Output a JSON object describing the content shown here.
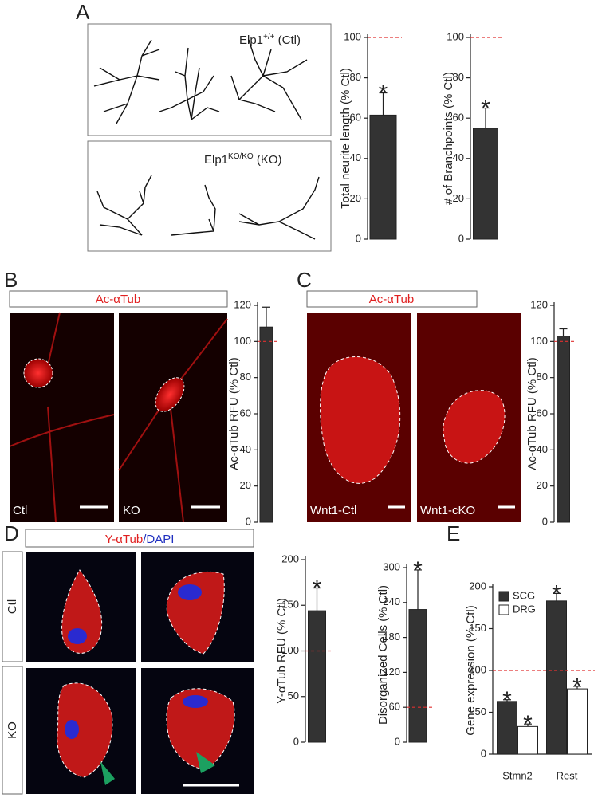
{
  "panel_letters": [
    "A",
    "B",
    "C",
    "D",
    "E"
  ],
  "panel_a": {
    "ctl": {
      "gene": "Elp1",
      "genotype": "+/+",
      "group": "(Ctl)"
    },
    "ko": {
      "gene": "Elp1",
      "genotype": "KO/KO",
      "group": "(KO)"
    }
  },
  "panel_b": {
    "header": "Ac-αTub",
    "images": [
      "Ctl",
      "KO"
    ]
  },
  "panel_c": {
    "header": "Ac-αTub",
    "images": [
      "Wnt1-Ctl",
      "Wnt1-cKO"
    ]
  },
  "panel_d": {
    "header": [
      "Y-αTub",
      "/DAPI"
    ],
    "rows": [
      "Ctl",
      "KO"
    ]
  },
  "chart_data": [
    {
      "type": "bar",
      "ylabel": "Total neurite length (% Ctl)",
      "categories": [
        null
      ],
      "series": [
        {
          "color": "#333333",
          "values": [
            61.5
          ],
          "errors": [
            11
          ],
          "labels": [
            "*"
          ]
        }
      ],
      "ylim": [
        0,
        100
      ],
      "yticks": [
        0,
        20,
        40,
        60,
        80,
        100
      ],
      "hline": {
        "value": 100,
        "color": "#e03030"
      }
    },
    {
      "type": "bar",
      "ylabel": "# of Branchpoints (% Ctl)",
      "categories": [
        null
      ],
      "series": [
        {
          "color": "#333333",
          "values": [
            55
          ],
          "errors": [
            10
          ],
          "labels": [
            "*"
          ]
        }
      ],
      "ylim": [
        0,
        100
      ],
      "yticks": [
        0,
        20,
        40,
        60,
        80,
        100
      ],
      "hline": {
        "value": 100,
        "color": "#e03030"
      }
    },
    {
      "type": "bar",
      "ylabel": "Ac-αTub RFU (% Ctl)",
      "categories": [
        null
      ],
      "series": [
        {
          "color": "#333333",
          "values": [
            108
          ],
          "errors": [
            11
          ]
        }
      ],
      "ylim": [
        0,
        120
      ],
      "yticks": [
        0,
        20,
        40,
        60,
        80,
        100,
        120
      ],
      "hline": {
        "value": 100,
        "color": "#e03030"
      }
    },
    {
      "type": "bar",
      "ylabel": "Ac-αTub RFU (% Ctl)",
      "categories": [
        null
      ],
      "series": [
        {
          "color": "#333333",
          "values": [
            103
          ],
          "errors": [
            4
          ]
        }
      ],
      "ylim": [
        0,
        120
      ],
      "yticks": [
        0,
        20,
        40,
        60,
        80,
        100,
        120
      ],
      "hline": {
        "value": 100,
        "color": "#e03030"
      }
    },
    {
      "type": "bar",
      "ylabel": "Y-αTub RFU (% Ctl)",
      "categories": [
        null
      ],
      "series": [
        {
          "color": "#333333",
          "values": [
            144
          ],
          "errors": [
            25
          ],
          "labels": [
            "*"
          ]
        }
      ],
      "ylim": [
        0,
        200
      ],
      "yticks": [
        0,
        50,
        100,
        150,
        200
      ],
      "hline": {
        "value": 100,
        "color": "#e03030"
      }
    },
    {
      "type": "bar",
      "ylabel": "Disorganized Cells (% Ctl)",
      "categories": [
        null
      ],
      "series": [
        {
          "color": "#333333",
          "values": [
            228
          ],
          "errors": [
            68
          ],
          "labels": [
            "*"
          ]
        }
      ],
      "ylim": [
        0,
        300
      ],
      "yticks": [
        0,
        60,
        120,
        180,
        240,
        300
      ],
      "hline": {
        "value": 60,
        "color": "#e03030"
      }
    },
    {
      "type": "bar",
      "ylabel": "Gene expression (% Ctl)",
      "categories": [
        "Stmn2",
        "Rest"
      ],
      "series": [
        {
          "name": "SCG",
          "color": "#333333",
          "values": [
            63,
            183
          ],
          "errors": [
            2,
            9
          ],
          "labels": [
            "*",
            "*"
          ]
        },
        {
          "name": "DRG",
          "color": "#ffffff",
          "values": [
            33,
            78
          ],
          "errors": [
            3,
            3
          ],
          "labels": [
            "*",
            "*"
          ]
        }
      ],
      "ylim": [
        0,
        200
      ],
      "yticks": [
        0,
        50,
        100,
        150,
        200
      ],
      "hline": {
        "value": 100,
        "color": "#e03030"
      },
      "legend": "upper left"
    }
  ]
}
